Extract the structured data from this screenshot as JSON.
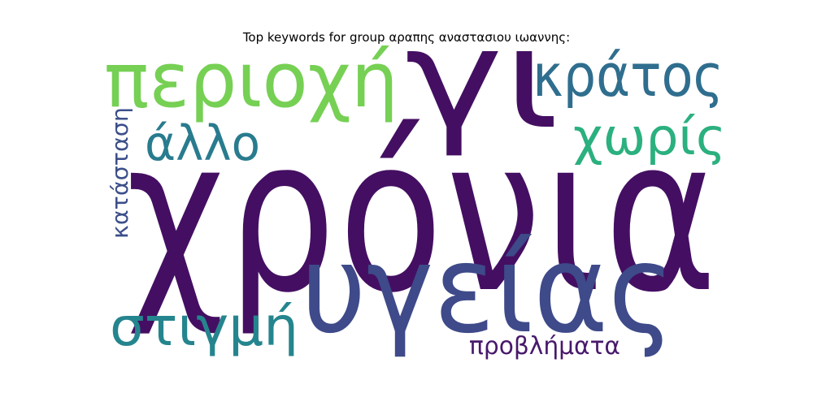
{
  "chart_data": {
    "type": "wordcloud",
    "title": "Top keywords for group αραπης αναστασιου ιωαννης:",
    "background": "#ffffff",
    "words": [
      {
        "text": "χρόνια",
        "color": "#440f62"
      },
      {
        "text": "γι",
        "color": "#440f62"
      },
      {
        "text": "υγείας",
        "color": "#3e4a89"
      },
      {
        "text": "περιοχή",
        "color": "#76d054"
      },
      {
        "text": "κράτος",
        "color": "#2f6e8e"
      },
      {
        "text": "χωρίς",
        "color": "#2bb07f"
      },
      {
        "text": "άλλο",
        "color": "#297b8e"
      },
      {
        "text": "στιγμή",
        "color": "#25858e"
      },
      {
        "text": "κατάσταση",
        "color": "#3c4f8a"
      },
      {
        "text": "προβλήματα",
        "color": "#48196b"
      }
    ]
  }
}
